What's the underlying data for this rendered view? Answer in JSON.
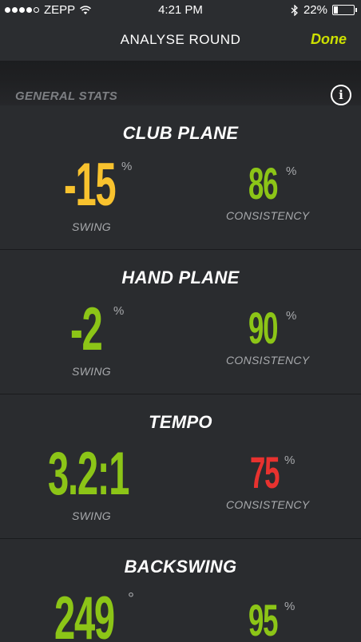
{
  "status_bar": {
    "carrier": "ZEPP",
    "time": "4:21 PM",
    "battery": "22%",
    "battery_level": 0.22
  },
  "nav": {
    "title": "ANALYSE ROUND",
    "done_label": "Done"
  },
  "section": {
    "label": "GENERAL STATS",
    "info_glyph": "i"
  },
  "cards": [
    {
      "title": "CLUB PLANE",
      "swing_value": "-15",
      "swing_unit": "%",
      "swing_label": "SWING",
      "consistency_value": "86",
      "consistency_unit": "%",
      "consistency_label": "CONSISTENCY",
      "swing_color": "#f8c22e",
      "consistency_color": "#8cc517"
    },
    {
      "title": "HAND PLANE",
      "swing_value": "-2",
      "swing_unit": "%",
      "swing_label": "SWING",
      "consistency_value": "90",
      "consistency_unit": "%",
      "consistency_label": "CONSISTENCY",
      "swing_color": "#8cc517",
      "consistency_color": "#8cc517"
    },
    {
      "title": "TEMPO",
      "swing_value": "3.2:1",
      "swing_label": "SWING",
      "consistency_value": "75",
      "consistency_unit": "%",
      "consistency_label": "CONSISTENCY",
      "swing_color": "#8cc517",
      "consistency_color": "#e8322f"
    },
    {
      "title": "BACKSWING",
      "swing_value": "249",
      "swing_unit": "°",
      "consistency_value": "95",
      "consistency_unit": "%",
      "swing_color": "#8cc517",
      "consistency_color": "#8cc517"
    }
  ]
}
